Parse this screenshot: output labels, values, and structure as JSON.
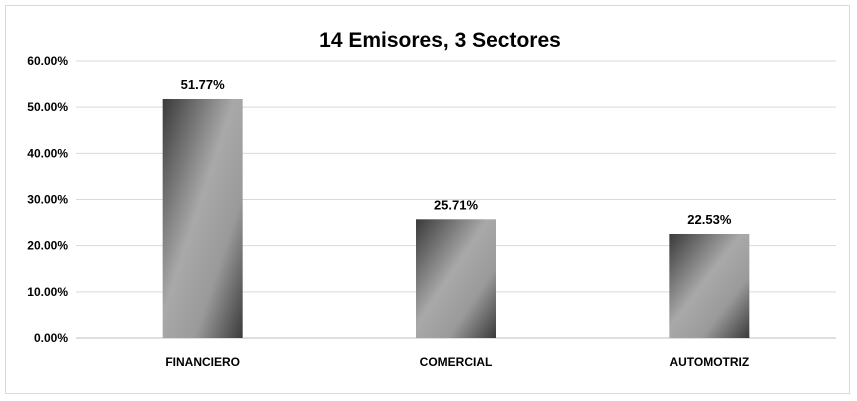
{
  "chart_data": {
    "type": "bar",
    "title": "14 Emisores, 3 Sectores",
    "categories": [
      "FINANCIERO",
      "COMERCIAL",
      "AUTOMOTRIZ"
    ],
    "values": [
      51.77,
      25.71,
      22.53
    ],
    "value_labels": [
      "51.77%",
      "25.71%",
      "22.53%"
    ],
    "ylim": [
      0,
      60
    ],
    "yticks": [
      0,
      10,
      20,
      30,
      40,
      50,
      60
    ],
    "ytick_labels": [
      "0.00%",
      "10.00%",
      "20.00%",
      "30.00%",
      "40.00%",
      "50.00%",
      "60.00%"
    ],
    "xlabel": "",
    "ylabel": "",
    "grid": true,
    "legend": "none",
    "colors": {
      "bar_dark": "#3a3a3a",
      "bar_light": "#a9a9a9",
      "grid": "#d9d9d9",
      "axis": "#bfbfbf"
    }
  }
}
